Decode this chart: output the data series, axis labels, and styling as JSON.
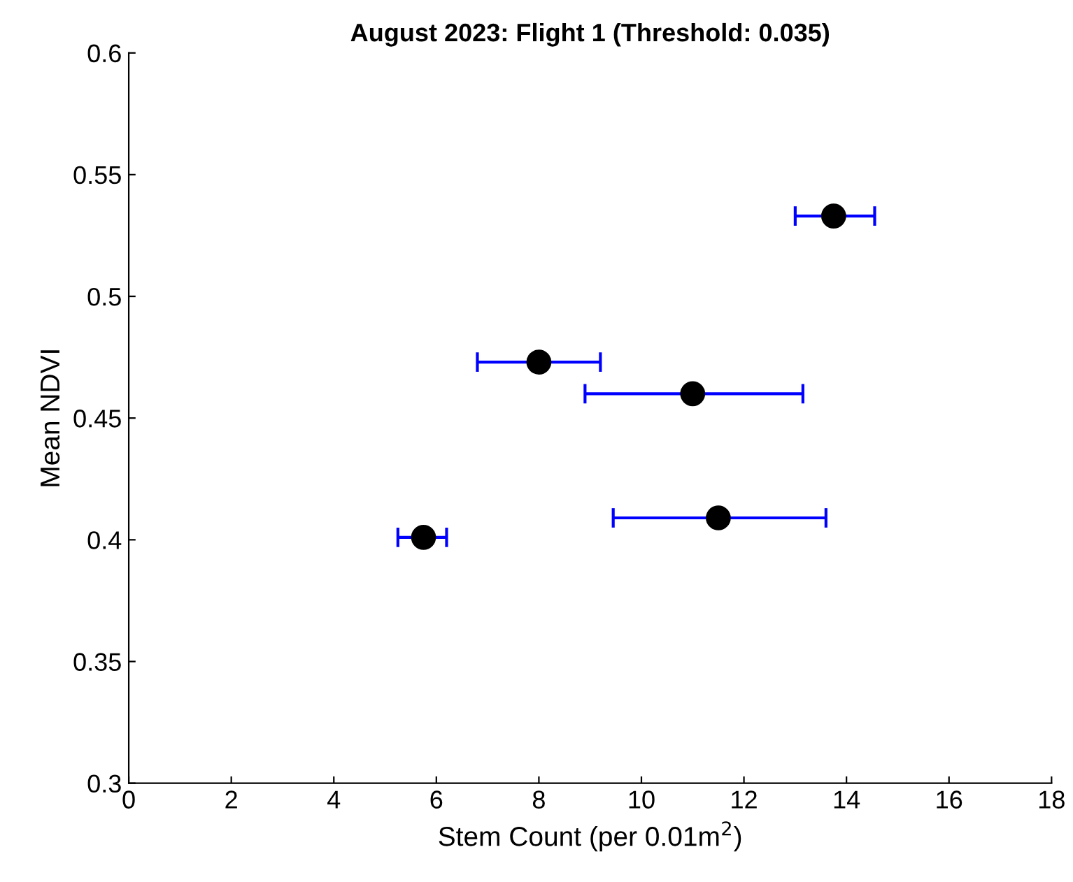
{
  "chart_data": {
    "type": "scatter",
    "title": "August 2023: Flight 1 (Threshold: 0.035)",
    "xlabel": "Stem Count (per 0.01m$^{2}$)",
    "ylabel": "Mean NDVI",
    "x": [
      13.75,
      8.0,
      11.0,
      11.5,
      5.75
    ],
    "series": [
      {
        "color": "#000000",
        "values": [
          0.533,
          0.473,
          0.46,
          0.409,
          0.401
        ],
        "xerrors": [
          [
            13.0,
            14.55
          ],
          [
            6.8,
            9.2
          ],
          [
            8.9,
            13.15
          ],
          [
            9.45,
            13.6
          ],
          [
            5.25,
            6.2
          ]
        ]
      }
    ],
    "xlim": [
      0,
      18
    ],
    "xticks": [
      0,
      2,
      4,
      6,
      8,
      10,
      12,
      14,
      16,
      18
    ],
    "ylim": [
      0.3,
      0.6
    ],
    "yticks": [
      0.3,
      0.35,
      0.4,
      0.45,
      0.5,
      0.55,
      0.6
    ],
    "marker": "circle",
    "grid": false,
    "legend": false
  }
}
